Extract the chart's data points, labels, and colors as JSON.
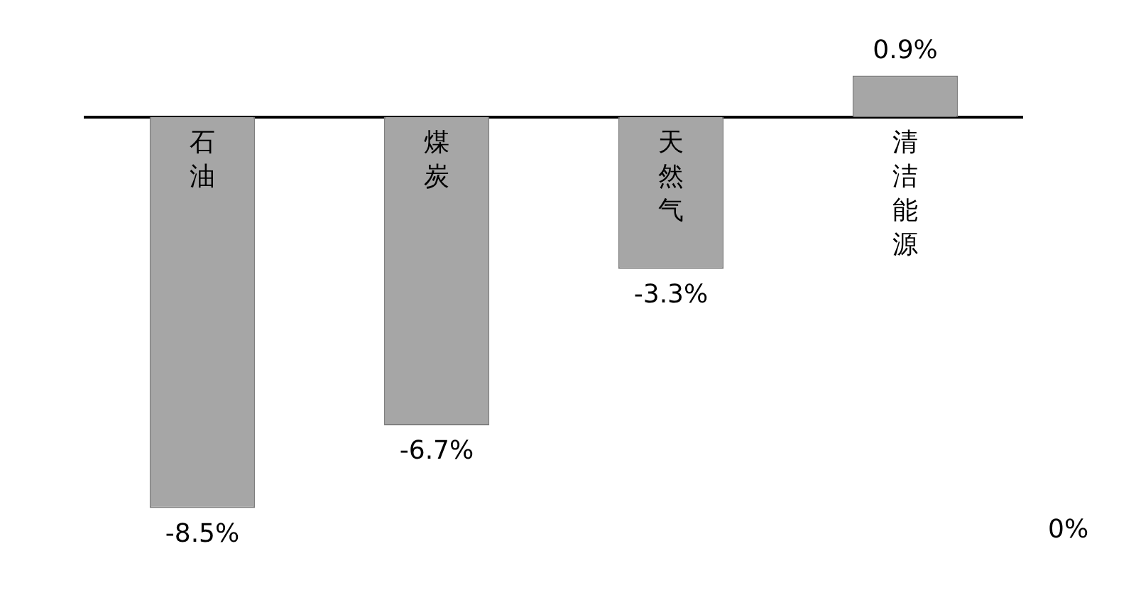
{
  "chart_data": {
    "type": "bar",
    "categories": [
      "石油",
      "煤炭",
      "天然气",
      "清洁能源"
    ],
    "values": [
      -8.5,
      -6.7,
      -3.3,
      0.9
    ],
    "value_labels": [
      "-8.5%",
      "-6.7%",
      "-3.3%",
      "0.9%"
    ],
    "color": "#a6a6a6",
    "annotations": [
      "0%"
    ],
    "tick_labels": false,
    "grid": false,
    "legend": false
  }
}
